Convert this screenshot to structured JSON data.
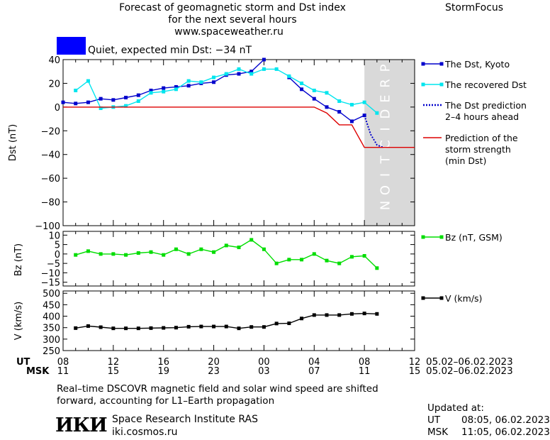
{
  "header": {
    "title_line1": "Forecast of geomagnetic storm and Dst index",
    "title_line2": "for the next several hours",
    "url": "www.spaceweather.ru",
    "brand": "StormFocus"
  },
  "status": {
    "text": "Quiet, expected min Dst: −34 nT",
    "color": "#0000ff"
  },
  "prediction_band_label": "PREDICTION",
  "colors": {
    "dst_kyoto": "#0000cc",
    "recovered_dst": "#00e5ee",
    "dst_prediction": "#0000cc",
    "storm_strength": "#dd0000",
    "bz": "#00dd00",
    "speed": "#000000",
    "prediction_band": "#d9d9d9"
  },
  "time_axis": {
    "ut_label": "UT",
    "msk_label": "MSK",
    "ut_ticks": [
      "08",
      "12",
      "16",
      "20",
      "00",
      "04",
      "08",
      "12"
    ],
    "msk_ticks": [
      "11",
      "15",
      "19",
      "23",
      "03",
      "07",
      "11",
      "15"
    ],
    "date_range_ut": "05.02–06.02.2023",
    "date_range_msk": "05.02–06.02.2023"
  },
  "chart_data": [
    {
      "type": "line",
      "panel": "dst",
      "xlabel": "",
      "ylabel": "Dst (nT)",
      "ylim": [
        -100,
        40
      ],
      "yticks": [
        "40",
        "20",
        "0",
        "−20",
        "−40",
        "−60",
        "−80",
        "−100"
      ],
      "ytick_values": [
        40,
        20,
        0,
        -20,
        -40,
        -60,
        -80,
        -100
      ],
      "x_unit": "hours from 08 UT 05.02.2023",
      "xlim": [
        8,
        36
      ],
      "prediction_region": [
        32,
        36
      ],
      "legend_placement": "right",
      "series": [
        {
          "name": "The Dst, Kyoto",
          "color_key": "dst_kyoto",
          "marker": "square",
          "x": [
            8,
            9,
            10,
            11,
            12,
            13,
            14,
            15,
            16,
            17,
            18,
            19,
            20,
            21,
            22,
            23,
            24,
            25,
            26,
            27,
            28,
            29,
            30,
            31,
            32
          ],
          "y": [
            4,
            3,
            4,
            7,
            6,
            8,
            10,
            14,
            16,
            17,
            18,
            20,
            21,
            27,
            28,
            30,
            40,
            null,
            25,
            15,
            7,
            0,
            -4,
            -12,
            -7
          ]
        },
        {
          "name": "The recovered Dst",
          "color_key": "recovered_dst",
          "marker": "square",
          "x": [
            9,
            10,
            11,
            12,
            13,
            14,
            15,
            16,
            17,
            18,
            19,
            20,
            21,
            22,
            23,
            24,
            25,
            26,
            27,
            28,
            29,
            30,
            31,
            32,
            33
          ],
          "y": [
            14,
            22,
            -1,
            0,
            1,
            5,
            12,
            13,
            15,
            22,
            21,
            25,
            28,
            32,
            28,
            32,
            32,
            26,
            20,
            14,
            12,
            5,
            2,
            4,
            -5
          ]
        },
        {
          "name": "The Dst prediction\n2–4 hours ahead",
          "color_key": "dst_prediction",
          "line": "dotted",
          "x": [
            32,
            32.5,
            33,
            33.5
          ],
          "y": [
            -7,
            -23,
            -32,
            -34
          ]
        },
        {
          "name": "Prediction of the\nstorm strength\n(min Dst)",
          "color_key": "storm_strength",
          "line": "solid",
          "x": [
            8,
            28,
            29,
            30,
            31,
            32,
            36
          ],
          "y": [
            0,
            0,
            -5,
            -15,
            -15,
            -34,
            -34
          ]
        }
      ]
    },
    {
      "type": "line",
      "panel": "bz",
      "ylabel": "Bz (nT)",
      "ylim": [
        -17,
        12
      ],
      "yticks": [
        "10",
        "5",
        "0",
        "−5",
        "−10",
        "−15"
      ],
      "ytick_values": [
        10,
        5,
        0,
        -5,
        -10,
        -15
      ],
      "xlim": [
        8,
        36
      ],
      "series": [
        {
          "name": "Bz (nT, GSM)",
          "color_key": "bz",
          "marker": "square",
          "x": [
            9,
            10,
            11,
            12,
            13,
            14,
            15,
            16,
            17,
            18,
            19,
            20,
            21,
            22,
            23,
            24,
            25,
            26,
            27,
            28,
            29,
            30,
            31,
            32,
            33
          ],
          "y": [
            -0.5,
            1.5,
            0,
            0,
            -0.5,
            0.5,
            1,
            -0.5,
            2.5,
            0,
            2.5,
            1,
            4.5,
            3.5,
            7.5,
            2.5,
            -5,
            -3,
            -3,
            0,
            -3.5,
            -5,
            -1.5,
            -1,
            -7.5
          ]
        }
      ]
    },
    {
      "type": "line",
      "panel": "speed",
      "ylabel": "V (km/s)",
      "ylim": [
        250,
        510
      ],
      "yticks": [
        "500",
        "450",
        "400",
        "350",
        "300",
        "250"
      ],
      "ytick_values": [
        500,
        450,
        400,
        350,
        300,
        250
      ],
      "xlim": [
        8,
        36
      ],
      "series": [
        {
          "name": "V (km/s)",
          "color_key": "speed",
          "marker": "square",
          "x": [
            9,
            10,
            11,
            12,
            13,
            14,
            15,
            16,
            17,
            18,
            19,
            20,
            21,
            22,
            23,
            24,
            25,
            26,
            27,
            28,
            29,
            30,
            31,
            32,
            33
          ],
          "y": [
            348,
            357,
            352,
            347,
            347,
            347,
            348,
            349,
            350,
            354,
            355,
            355,
            355,
            347,
            353,
            353,
            368,
            369,
            390,
            405,
            405,
            405,
            410,
            412,
            410
          ]
        }
      ]
    }
  ],
  "footer": {
    "note_line1": "Real–time DSCOVR magnetic field and solar wind speed are shifted",
    "note_line2": "forward, accounting for L1–Earth propagation",
    "logo_text": "ИКИ",
    "institute": "Space Research Institute RAS",
    "site": "iki.cosmos.ru",
    "updated_label": "Updated at:",
    "updated_ut_label": "UT",
    "updated_ut": "08:05, 06.02.2023",
    "updated_msk_label": "MSK",
    "updated_msk": "11:05, 06.02.2023"
  }
}
